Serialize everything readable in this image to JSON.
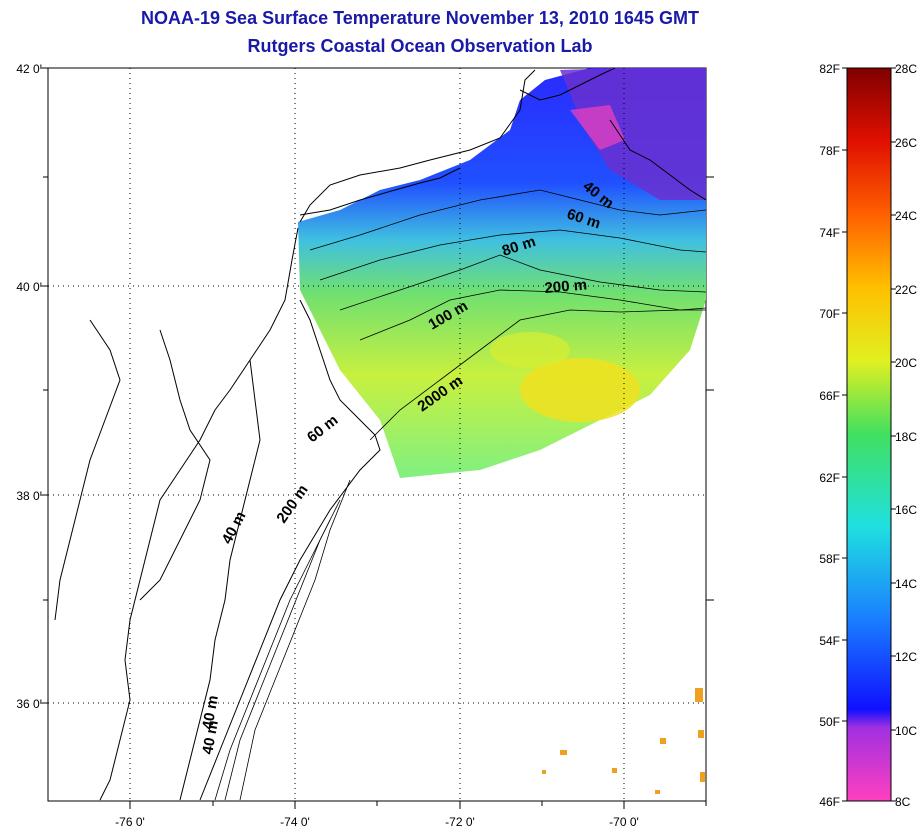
{
  "title": "NOAA-19 Sea Surface Temperature November 13, 2010 1645 GMT",
  "subtitle": "Rutgers Coastal Ocean Observation Lab",
  "map": {
    "lat_labels": [
      "42 0'",
      "40 0'",
      "38 0'",
      "36 0'"
    ],
    "lon_labels": [
      "-76 0'",
      "-74 0'",
      "-72 0'",
      "-70 0'"
    ],
    "contour_labels": [
      "40 m",
      "60 m",
      "80 m",
      "200 m",
      "100 m",
      "2000 m",
      "60 m",
      "200 m",
      "40 m",
      "40 m",
      "40 m"
    ]
  },
  "colorbar": {
    "f_labels": [
      "82F",
      "78F",
      "74F",
      "70F",
      "66F",
      "62F",
      "58F",
      "54F",
      "50F",
      "46F"
    ],
    "c_labels": [
      "28C",
      "26C",
      "24C",
      "22C",
      "20C",
      "18C",
      "16C",
      "14C",
      "12C",
      "10C",
      "8C"
    ],
    "colors": [
      "#ff40c0",
      "#c040ff",
      "#2020ff",
      "#1a90ff",
      "#20e0e0",
      "#40e080",
      "#c0f040",
      "#ffff00",
      "#ffa000",
      "#ff4000",
      "#d00000",
      "#800000"
    ]
  }
}
